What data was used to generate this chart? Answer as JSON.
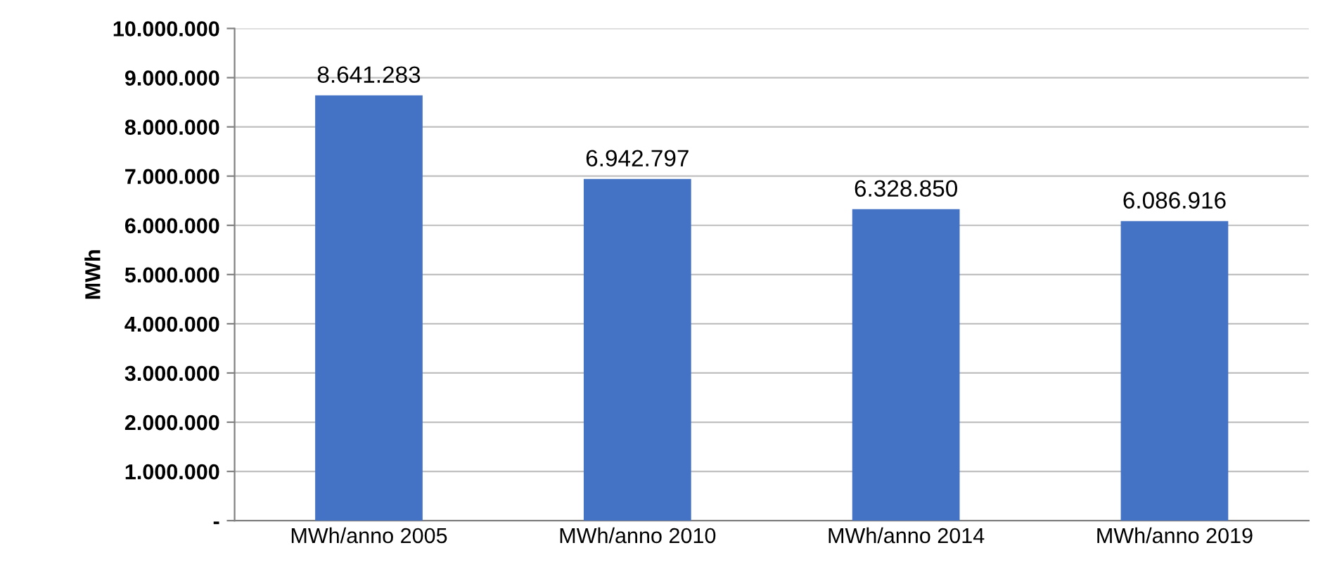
{
  "chart_data": {
    "type": "bar",
    "ylabel": "MWh",
    "categories": [
      "MWh/anno 2005",
      "MWh/anno 2010",
      "MWh/anno 2014",
      "MWh/anno 2019"
    ],
    "values": [
      8641283,
      6942797,
      6328850,
      6086916
    ],
    "value_labels": [
      "8.641.283",
      "6.942.797",
      "6.328.850",
      "6.086.916"
    ],
    "color": "#4472c4",
    "ylim": [
      0,
      10000000
    ],
    "yticks": [
      {
        "value": 0,
        "label": "-"
      },
      {
        "value": 1000000,
        "label": "1.000.000"
      },
      {
        "value": 2000000,
        "label": "2.000.000"
      },
      {
        "value": 3000000,
        "label": "3.000.000"
      },
      {
        "value": 4000000,
        "label": "4.000.000"
      },
      {
        "value": 5000000,
        "label": "5.000.000"
      },
      {
        "value": 6000000,
        "label": "6.000.000"
      },
      {
        "value": 7000000,
        "label": "7.000.000"
      },
      {
        "value": 8000000,
        "label": "8.000.000"
      },
      {
        "value": 9000000,
        "label": "9.000.000"
      },
      {
        "value": 10000000,
        "label": "10.000.000"
      }
    ],
    "grid": "y"
  }
}
